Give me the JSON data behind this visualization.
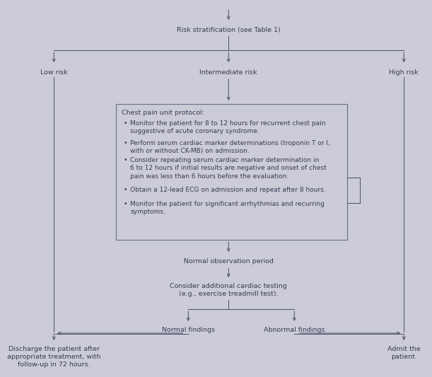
{
  "background_color": "#ccccd8",
  "text_color": "#3a3a55",
  "box_edge_color": "#6a6a88",
  "font_size": 6.8,
  "title": "Risk stratification (see Table 1)",
  "risk_low": "Low risk",
  "risk_intermediate": "Intermediate risk",
  "risk_high": "High risk",
  "protocol_title": "Chest pain unit protocol:",
  "protocol_bullets": [
    "Monitor the patient for 8 to 12 hours for recurrent chest pain\nsuggestive of acute coronary syndrome.",
    "Perform serum cardiac marker determinations (troponin T or I,\nwith or without CK-MB) on admission.",
    "Consider repeating serum cardiac marker determination in\n6 to 12 hours if initial results are negative and onset of chest\npain was less than 6 hours before the evaluation.",
    "Obtain a 12-lead ECG on admission and repeat after 8 hours.",
    "Monitor the patient for significant arrhythmias and recurring\nsymptoms."
  ],
  "normal_obs": "Normal observation period",
  "cardiac_test": "Consider additional cardiac testing\n(e.g., exercise treadmill test).",
  "normal_findings": "Normal findings",
  "abnormal_findings": "Abnormal findings",
  "discharge_text": "Discharge the patient after\nappropriate treatment, with\nfollow-up in 72 hours.",
  "admit_text": "Admit the\npatient.",
  "arrow_color": "#4a4a65",
  "line_color": "#4a4a65"
}
